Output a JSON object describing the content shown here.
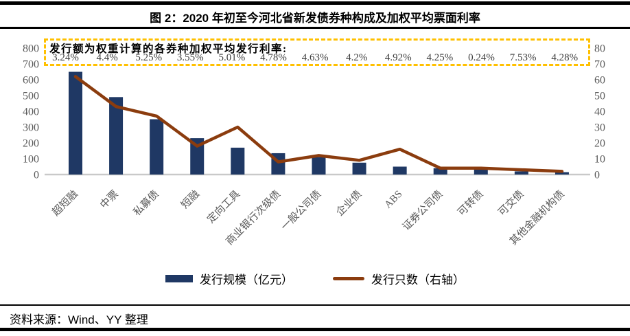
{
  "header": {
    "title": "图 2：2020 年初至今河北省新发债券种构成及加权平均票面利率"
  },
  "annotation": {
    "title": "发行额为权重计算的各券种加权平均发行利率:",
    "rates": [
      "3.24%",
      "4.4%",
      "5.25%",
      "3.55%",
      "5.01%",
      "4.78%",
      "4.63%",
      "4.2%",
      "4.92%",
      "4.25%",
      "0.24%",
      "7.53%",
      "4.28%"
    ],
    "border_color": "#FFC000"
  },
  "chart_data": {
    "type": "bar",
    "combo": "bar+line dual axis",
    "title": "2020 年初至今河北省新发债券种构成及加权平均票面利率",
    "categories": [
      "超短融",
      "中票",
      "私募债",
      "短融",
      "定向工具",
      "商业银行次级债",
      "一般公司债",
      "企业债",
      "ABS",
      "证券公司债",
      "可转债",
      "可交债",
      "其他金融机构债"
    ],
    "series": [
      {
        "name": "发行规模（亿元）",
        "type": "bar",
        "axis": "left",
        "color": "#1F3864",
        "values": [
          650,
          490,
          350,
          230,
          170,
          135,
          110,
          75,
          50,
          40,
          40,
          20,
          15
        ]
      },
      {
        "name": "发行只数（右轴）",
        "type": "line",
        "axis": "right",
        "color": "#8B3C0E",
        "values": [
          62,
          43,
          37,
          18,
          30,
          8,
          12,
          9,
          16,
          4,
          4,
          3,
          2
        ]
      }
    ],
    "left_axis": {
      "min": 0,
      "max": 800,
      "step": 100,
      "ticks": [
        "0",
        "100",
        "200",
        "300",
        "400",
        "500",
        "600",
        "700",
        "800"
      ]
    },
    "right_axis": {
      "min": 0,
      "max": 80,
      "step": 10,
      "ticks": [
        "0",
        "10",
        "20",
        "30",
        "40",
        "50",
        "60",
        "70",
        "80"
      ]
    },
    "grid": false,
    "legend_position": "bottom",
    "axis_text_color": "#595959",
    "baseline_color": "#C9C9C9"
  },
  "footer": {
    "source": "资料来源：Wind、YY 整理"
  }
}
